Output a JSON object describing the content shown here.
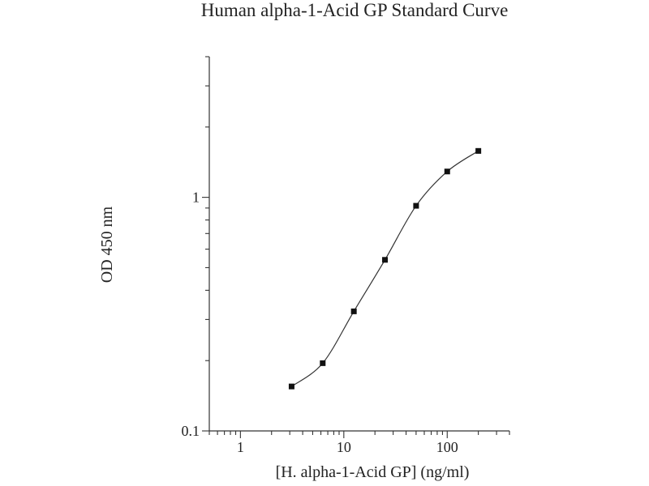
{
  "chart_data": {
    "type": "scatter",
    "title": "Human alpha-1-Acid GP Standard Curve",
    "xlabel": "[H. alpha-1-Acid GP] (ng/ml)",
    "ylabel": "OD 450 nm",
    "xscale": "log",
    "yscale": "log",
    "xlim": [
      0.5,
      400
    ],
    "ylim": [
      0.1,
      4
    ],
    "x_ticks": [
      {
        "value": 1,
        "label": "1"
      },
      {
        "value": 10,
        "label": "10"
      },
      {
        "value": 100,
        "label": "100"
      }
    ],
    "y_ticks": [
      {
        "value": 0.1,
        "label": "0.1"
      },
      {
        "value": 1,
        "label": "1"
      }
    ],
    "grid": false,
    "legend": false,
    "series": [
      {
        "x": [
          3.125,
          6.25,
          12.5,
          25,
          50,
          100,
          200
        ],
        "y": [
          0.155,
          0.195,
          0.325,
          0.54,
          0.92,
          1.29,
          1.58
        ]
      }
    ],
    "fit_curve": "smooth"
  }
}
